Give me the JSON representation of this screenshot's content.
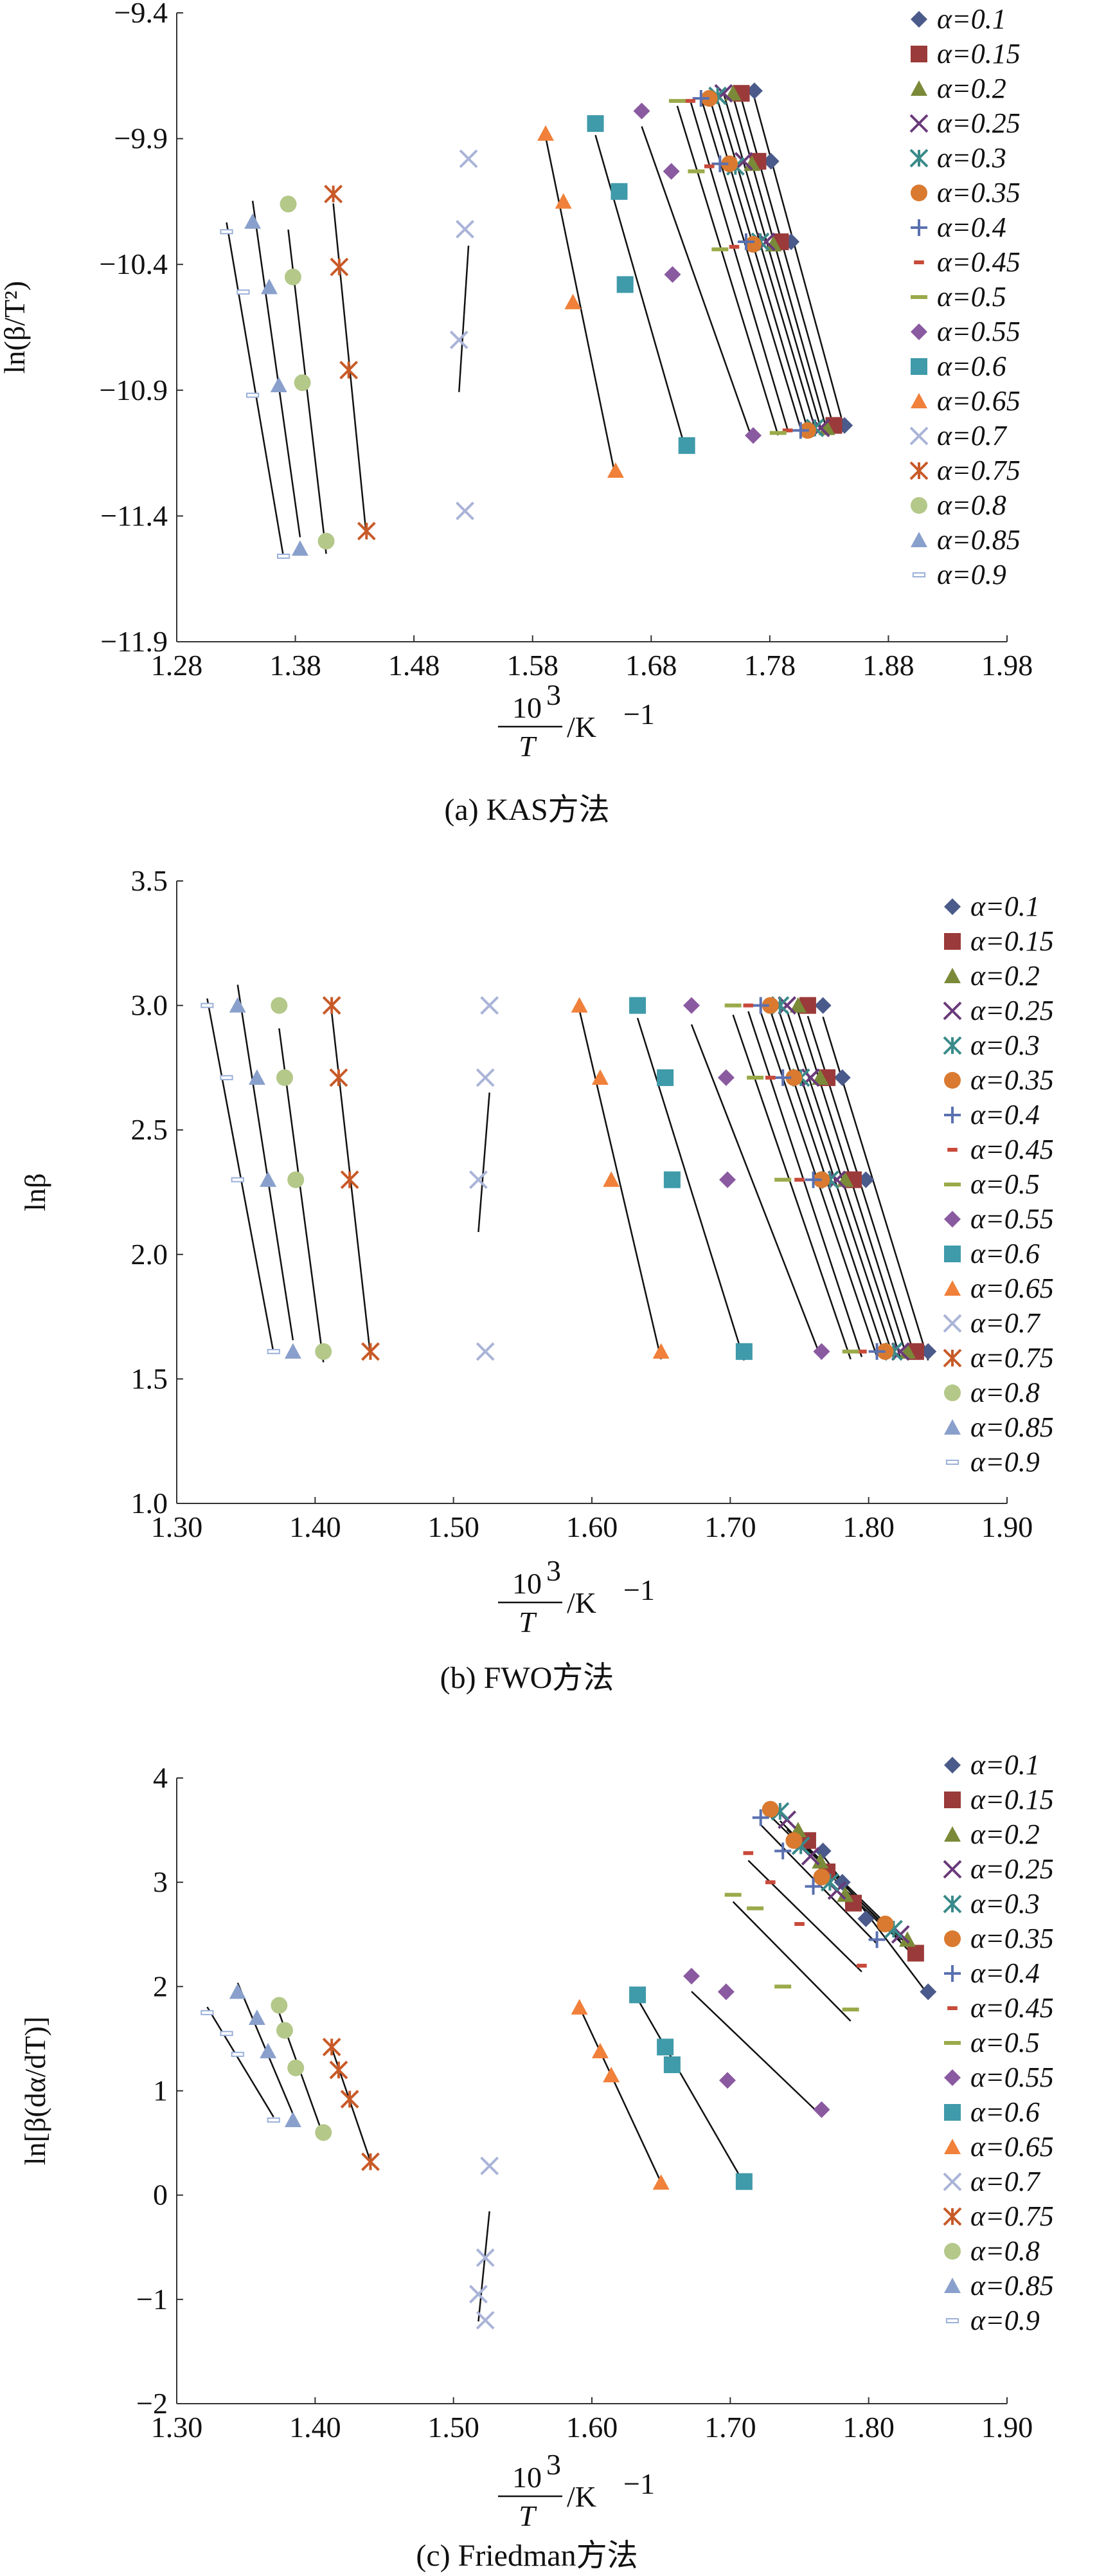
{
  "legend_labels": [
    "α=0.1",
    "α=0.15",
    "α=0.2",
    "α=0.25",
    "α=0.3",
    "α=0.35",
    "α=0.4",
    "α=0.45",
    "α=0.5",
    "α=0.55",
    "α=0.6",
    "α=0.65",
    "α=0.7",
    "α=0.75",
    "α=0.8",
    "α=0.85",
    "α=0.9"
  ],
  "series_styles": [
    {
      "marker": "diamond",
      "color": "#4a5a8a"
    },
    {
      "marker": "square",
      "color": "#9b3a3a"
    },
    {
      "marker": "triangle",
      "color": "#7a8a38"
    },
    {
      "marker": "x",
      "color": "#6a3a7a"
    },
    {
      "marker": "asterisk",
      "color": "#3a8a8a"
    },
    {
      "marker": "circle",
      "color": "#d97a30"
    },
    {
      "marker": "plus",
      "color": "#5a70b0"
    },
    {
      "marker": "dash",
      "color": "#c84a3a"
    },
    {
      "marker": "bar",
      "color": "#9aaa4a"
    },
    {
      "marker": "diamond",
      "color": "#8a5aa0"
    },
    {
      "marker": "square",
      "color": "#3f9aaa"
    },
    {
      "marker": "triangle",
      "color": "#f0803a"
    },
    {
      "marker": "x",
      "color": "#aab4d8"
    },
    {
      "marker": "asterisk",
      "color": "#c85a28"
    },
    {
      "marker": "circle",
      "color": "#b4c88a"
    },
    {
      "marker": "triangle",
      "color": "#8aa0cc"
    },
    {
      "marker": "hollowbar",
      "color": "#9ab0d8"
    }
  ],
  "xlabel_text": {
    "numerator": "10",
    "superscript": "3",
    "denominator": "T",
    "unit": " /K",
    "unit_sup": "−1"
  },
  "chart_data": [
    {
      "type": "scatter",
      "caption": "(a) KAS方法",
      "ylabel": "ln(β/T²)",
      "xlim": [
        1.28,
        1.98
      ],
      "ylim": [
        -11.9,
        -9.4
      ],
      "xticks": [
        1.28,
        1.38,
        1.48,
        1.58,
        1.68,
        1.78,
        1.88,
        1.98
      ],
      "yticks": [
        -11.9,
        -11.4,
        -10.9,
        -10.4,
        -9.9,
        -9.4
      ],
      "xtick_labels": [
        "1.28",
        "1.38",
        "1.48",
        "1.58",
        "1.68",
        "1.78",
        "1.88",
        "1.98"
      ],
      "ytick_labels": [
        "−11.9",
        "−11.4",
        "−10.9",
        "−10.4",
        "−9.9",
        "−9.4"
      ],
      "legend_position": "right",
      "series": [
        {
          "name": "α=0.1",
          "x": [
            1.767,
            1.781,
            1.798,
            1.843
          ],
          "y": [
            -9.71,
            -9.99,
            -10.31,
            -11.04
          ]
        },
        {
          "name": "α=0.15",
          "x": [
            1.756,
            1.77,
            1.789,
            1.834
          ],
          "y": [
            -9.72,
            -9.99,
            -10.31,
            -11.04
          ]
        },
        {
          "name": "α=0.2",
          "x": [
            1.749,
            1.765,
            1.783,
            1.828
          ],
          "y": [
            -9.72,
            -10.0,
            -10.32,
            -11.05
          ]
        },
        {
          "name": "α=0.25",
          "x": [
            1.741,
            1.758,
            1.777,
            1.823
          ],
          "y": [
            -9.72,
            -9.99,
            -10.31,
            -11.05
          ]
        },
        {
          "name": "α=0.3",
          "x": [
            1.736,
            1.751,
            1.772,
            1.818
          ],
          "y": [
            -9.73,
            -10.01,
            -10.31,
            -11.05
          ]
        },
        {
          "name": "α=0.35",
          "x": [
            1.729,
            1.746,
            1.766,
            1.812
          ],
          "y": [
            -9.74,
            -10.0,
            -10.32,
            -11.06
          ]
        },
        {
          "name": "α=0.4",
          "x": [
            1.722,
            1.738,
            1.76,
            1.806
          ],
          "y": [
            -9.74,
            -10.0,
            -10.31,
            -11.06
          ]
        },
        {
          "name": "α=0.45",
          "x": [
            1.713,
            1.729,
            1.75,
            1.795
          ],
          "y": [
            -9.75,
            -10.01,
            -10.33,
            -11.06
          ]
        },
        {
          "name": "α=0.5",
          "x": [
            1.702,
            1.718,
            1.738,
            1.787
          ],
          "y": [
            -9.75,
            -10.03,
            -10.34,
            -11.07
          ]
        },
        {
          "name": "α=0.55",
          "x": [
            1.672,
            1.697,
            1.698,
            1.766
          ],
          "y": [
            -9.79,
            -10.03,
            -10.44,
            -11.08
          ]
        },
        {
          "name": "α=0.6",
          "x": [
            1.633,
            1.653,
            1.658,
            1.71
          ],
          "y": [
            -9.84,
            -10.11,
            -10.48,
            -11.12
          ]
        },
        {
          "name": "α=0.65",
          "x": [
            1.591,
            1.606,
            1.614,
            1.65
          ],
          "y": [
            -9.88,
            -10.15,
            -10.55,
            -11.22
          ]
        },
        {
          "name": "α=0.7",
          "x": [
            1.526,
            1.523,
            1.518,
            1.523
          ],
          "y": [
            -9.98,
            -10.26,
            -10.7,
            -11.38
          ]
        },
        {
          "name": "α=0.75",
          "x": [
            1.412,
            1.417,
            1.425,
            1.44
          ],
          "y": [
            -10.12,
            -10.41,
            -10.82,
            -11.46
          ]
        },
        {
          "name": "α=0.8",
          "x": [
            1.374,
            1.378,
            1.386,
            1.406
          ],
          "y": [
            -10.16,
            -10.45,
            -10.87,
            -11.5
          ]
        },
        {
          "name": "α=0.85",
          "x": [
            1.344,
            1.358,
            1.366,
            1.384
          ],
          "y": [
            -10.23,
            -10.49,
            -10.88,
            -11.53
          ]
        },
        {
          "name": "α=0.9",
          "x": [
            1.322,
            1.336,
            1.344,
            1.37
          ],
          "y": [
            -10.27,
            -10.51,
            -10.92,
            -11.56
          ]
        }
      ]
    },
    {
      "type": "scatter",
      "caption": "(b) FWO方法",
      "ylabel": "lnβ",
      "xlim": [
        1.3,
        1.9
      ],
      "ylim": [
        1.0,
        3.5
      ],
      "xticks": [
        1.3,
        1.4,
        1.5,
        1.6,
        1.7,
        1.8,
        1.9
      ],
      "yticks": [
        1.0,
        1.5,
        2.0,
        2.5,
        3.0,
        3.5
      ],
      "xtick_labels": [
        "1.30",
        "1.40",
        "1.50",
        "1.60",
        "1.70",
        "1.80",
        "1.90"
      ],
      "ytick_labels": [
        "1.0",
        "1.5",
        "2.0",
        "2.5",
        "3.0",
        "3.5"
      ],
      "legend_position": "right",
      "series": [
        {
          "name": "α=0.1",
          "x": [
            1.767,
            1.781,
            1.798,
            1.843
          ],
          "y": [
            3.0,
            2.71,
            2.3,
            1.61
          ]
        },
        {
          "name": "α=0.15",
          "x": [
            1.756,
            1.77,
            1.789,
            1.834
          ],
          "y": [
            3.0,
            2.71,
            2.3,
            1.61
          ]
        },
        {
          "name": "α=0.2",
          "x": [
            1.749,
            1.765,
            1.783,
            1.828
          ],
          "y": [
            3.0,
            2.71,
            2.3,
            1.61
          ]
        },
        {
          "name": "α=0.25",
          "x": [
            1.741,
            1.758,
            1.777,
            1.823
          ],
          "y": [
            3.0,
            2.71,
            2.3,
            1.61
          ]
        },
        {
          "name": "α=0.3",
          "x": [
            1.736,
            1.751,
            1.772,
            1.818
          ],
          "y": [
            3.0,
            2.71,
            2.3,
            1.61
          ]
        },
        {
          "name": "α=0.35",
          "x": [
            1.729,
            1.746,
            1.766,
            1.812
          ],
          "y": [
            3.0,
            2.71,
            2.3,
            1.61
          ]
        },
        {
          "name": "α=0.4",
          "x": [
            1.722,
            1.738,
            1.76,
            1.806
          ],
          "y": [
            3.0,
            2.71,
            2.3,
            1.61
          ]
        },
        {
          "name": "α=0.45",
          "x": [
            1.713,
            1.729,
            1.75,
            1.795
          ],
          "y": [
            3.0,
            2.71,
            2.3,
            1.61
          ]
        },
        {
          "name": "α=0.5",
          "x": [
            1.702,
            1.718,
            1.738,
            1.787
          ],
          "y": [
            3.0,
            2.71,
            2.3,
            1.61
          ]
        },
        {
          "name": "α=0.55",
          "x": [
            1.672,
            1.697,
            1.698,
            1.766
          ],
          "y": [
            3.0,
            2.71,
            2.3,
            1.61
          ]
        },
        {
          "name": "α=0.6",
          "x": [
            1.633,
            1.653,
            1.658,
            1.71
          ],
          "y": [
            3.0,
            2.71,
            2.3,
            1.61
          ]
        },
        {
          "name": "α=0.65",
          "x": [
            1.591,
            1.606,
            1.614,
            1.65
          ],
          "y": [
            3.0,
            2.71,
            2.3,
            1.61
          ]
        },
        {
          "name": "α=0.7",
          "x": [
            1.526,
            1.523,
            1.518,
            1.523
          ],
          "y": [
            3.0,
            2.71,
            2.3,
            1.61
          ]
        },
        {
          "name": "α=0.75",
          "x": [
            1.412,
            1.417,
            1.425,
            1.44
          ],
          "y": [
            3.0,
            2.71,
            2.3,
            1.61
          ]
        },
        {
          "name": "α=0.8",
          "x": [
            1.374,
            1.378,
            1.386,
            1.406
          ],
          "y": [
            3.0,
            2.71,
            2.3,
            1.61
          ]
        },
        {
          "name": "α=0.85",
          "x": [
            1.344,
            1.358,
            1.366,
            1.384
          ],
          "y": [
            3.0,
            2.71,
            2.3,
            1.61
          ]
        },
        {
          "name": "α=0.9",
          "x": [
            1.322,
            1.336,
            1.344,
            1.37
          ],
          "y": [
            3.0,
            2.71,
            2.3,
            1.61
          ]
        }
      ]
    },
    {
      "type": "scatter",
      "caption": "(c) Friedman方法",
      "ylabel": "ln[β(dα/dT)]",
      "xlim": [
        1.3,
        1.9
      ],
      "ylim": [
        -2,
        4
      ],
      "xticks": [
        1.3,
        1.4,
        1.5,
        1.6,
        1.7,
        1.8,
        1.9
      ],
      "yticks": [
        -2,
        -1,
        0,
        1,
        2,
        3,
        4
      ],
      "xtick_labels": [
        "1.30",
        "1.40",
        "1.50",
        "1.60",
        "1.70",
        "1.80",
        "1.90"
      ],
      "ytick_labels": [
        "−2",
        "−1",
        "0",
        "1",
        "2",
        "3",
        "4"
      ],
      "legend_position": "right",
      "series": [
        {
          "name": "α=0.1",
          "x": [
            1.767,
            1.781,
            1.798,
            1.843
          ],
          "y": [
            3.3,
            3.0,
            2.65,
            1.95
          ]
        },
        {
          "name": "α=0.15",
          "x": [
            1.756,
            1.77,
            1.789,
            1.834
          ],
          "y": [
            3.4,
            3.1,
            2.8,
            2.32
          ]
        },
        {
          "name": "α=0.2",
          "x": [
            1.749,
            1.765,
            1.783,
            1.828
          ],
          "y": [
            3.5,
            3.2,
            2.88,
            2.45
          ]
        },
        {
          "name": "α=0.25",
          "x": [
            1.741,
            1.758,
            1.777,
            1.823
          ],
          "y": [
            3.6,
            3.25,
            2.92,
            2.5
          ]
        },
        {
          "name": "α=0.3",
          "x": [
            1.736,
            1.751,
            1.772,
            1.818
          ],
          "y": [
            3.68,
            3.35,
            3.0,
            2.55
          ]
        },
        {
          "name": "α=0.35",
          "x": [
            1.729,
            1.746,
            1.766,
            1.812
          ],
          "y": [
            3.7,
            3.4,
            3.05,
            2.6
          ]
        },
        {
          "name": "α=0.4",
          "x": [
            1.722,
            1.738,
            1.76,
            1.806
          ],
          "y": [
            3.62,
            3.3,
            2.96,
            2.45
          ]
        },
        {
          "name": "α=0.45",
          "x": [
            1.713,
            1.729,
            1.75,
            1.795
          ],
          "y": [
            3.28,
            3.0,
            2.6,
            2.2
          ]
        },
        {
          "name": "α=0.5",
          "x": [
            1.702,
            1.718,
            1.738,
            1.787
          ],
          "y": [
            2.88,
            2.75,
            2.0,
            1.78
          ]
        },
        {
          "name": "α=0.55",
          "x": [
            1.672,
            1.697,
            1.698,
            1.766
          ],
          "y": [
            2.1,
            1.95,
            1.1,
            0.82
          ]
        },
        {
          "name": "α=0.6",
          "x": [
            1.633,
            1.653,
            1.658,
            1.71
          ],
          "y": [
            1.92,
            1.42,
            1.25,
            0.13
          ]
        },
        {
          "name": "α=0.65",
          "x": [
            1.591,
            1.606,
            1.614,
            1.65
          ],
          "y": [
            1.8,
            1.38,
            1.15,
            0.12
          ]
        },
        {
          "name": "α=0.7",
          "x": [
            1.526,
            1.523,
            1.518,
            1.523
          ],
          "y": [
            0.28,
            -0.6,
            -0.95,
            -1.2
          ]
        },
        {
          "name": "α=0.75",
          "x": [
            1.412,
            1.417,
            1.425,
            1.44
          ],
          "y": [
            1.42,
            1.2,
            0.92,
            0.32
          ]
        },
        {
          "name": "α=0.8",
          "x": [
            1.374,
            1.378,
            1.386,
            1.406
          ],
          "y": [
            1.82,
            1.58,
            1.22,
            0.6
          ]
        },
        {
          "name": "α=0.85",
          "x": [
            1.344,
            1.358,
            1.366,
            1.384
          ],
          "y": [
            1.95,
            1.7,
            1.38,
            0.72
          ]
        },
        {
          "name": "α=0.9",
          "x": [
            1.322,
            1.336,
            1.344,
            1.37
          ],
          "y": [
            1.75,
            1.55,
            1.35,
            0.72
          ]
        }
      ]
    }
  ]
}
